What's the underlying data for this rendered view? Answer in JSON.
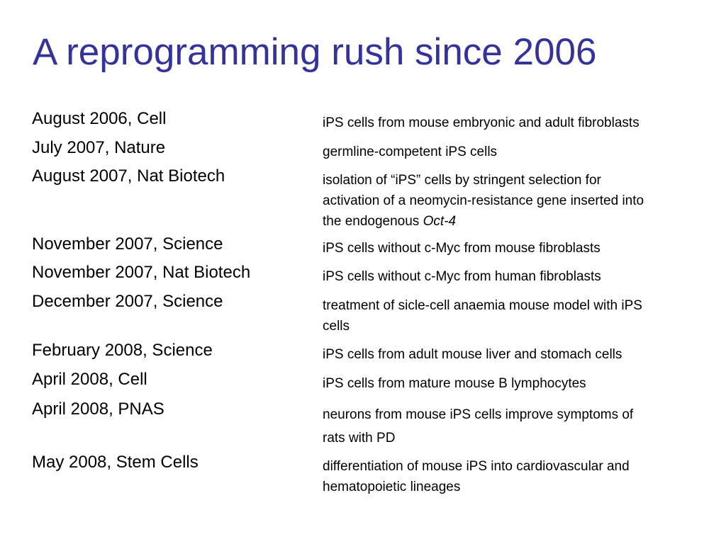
{
  "title": "A reprogramming rush since 2006",
  "accent_color": "#333399",
  "entries": [
    {
      "date": "August 2006, Cell",
      "desc": [
        "iPS cells from mouse embryonic and adult fibroblasts"
      ]
    },
    {
      "date": "July 2007, Nature",
      "desc": [
        "germline-competent iPS cells"
      ]
    },
    {
      "date": "August 2007, Nat Biotech",
      "desc": [
        "isolation of “iPS” cells by stringent selection for",
        "activation of a neomycin-resistance gene inserted into",
        "the endogenous "
      ],
      "desc_italic": "Oct-4"
    },
    {
      "date": "November 2007, Science",
      "desc": [
        "iPS cells without c-Myc from mouse fibroblasts"
      ]
    },
    {
      "date": "November 2007, Nat Biotech",
      "desc": [
        "iPS cells without c-Myc from human fibroblasts"
      ]
    },
    {
      "date": "December 2007, Science",
      "desc": [
        "treatment of sicle-cell anaemia mouse model with iPS",
        "cells"
      ]
    },
    {
      "date": "February 2008, Science",
      "desc": [
        "iPS cells from adult mouse liver and stomach cells"
      ]
    },
    {
      "date": "April 2008, Cell",
      "desc": [
        "iPS cells from mature mouse B lymphocytes"
      ]
    },
    {
      "date": "April 2008, PNAS",
      "desc": [
        "neurons from mouse iPS cells improve symptoms of",
        "rats with PD"
      ]
    },
    {
      "date": "May 2008, Stem Cells",
      "desc": [
        "differentiation of mouse iPS into cardiovascular and",
        "hematopoietic lineages"
      ]
    }
  ]
}
